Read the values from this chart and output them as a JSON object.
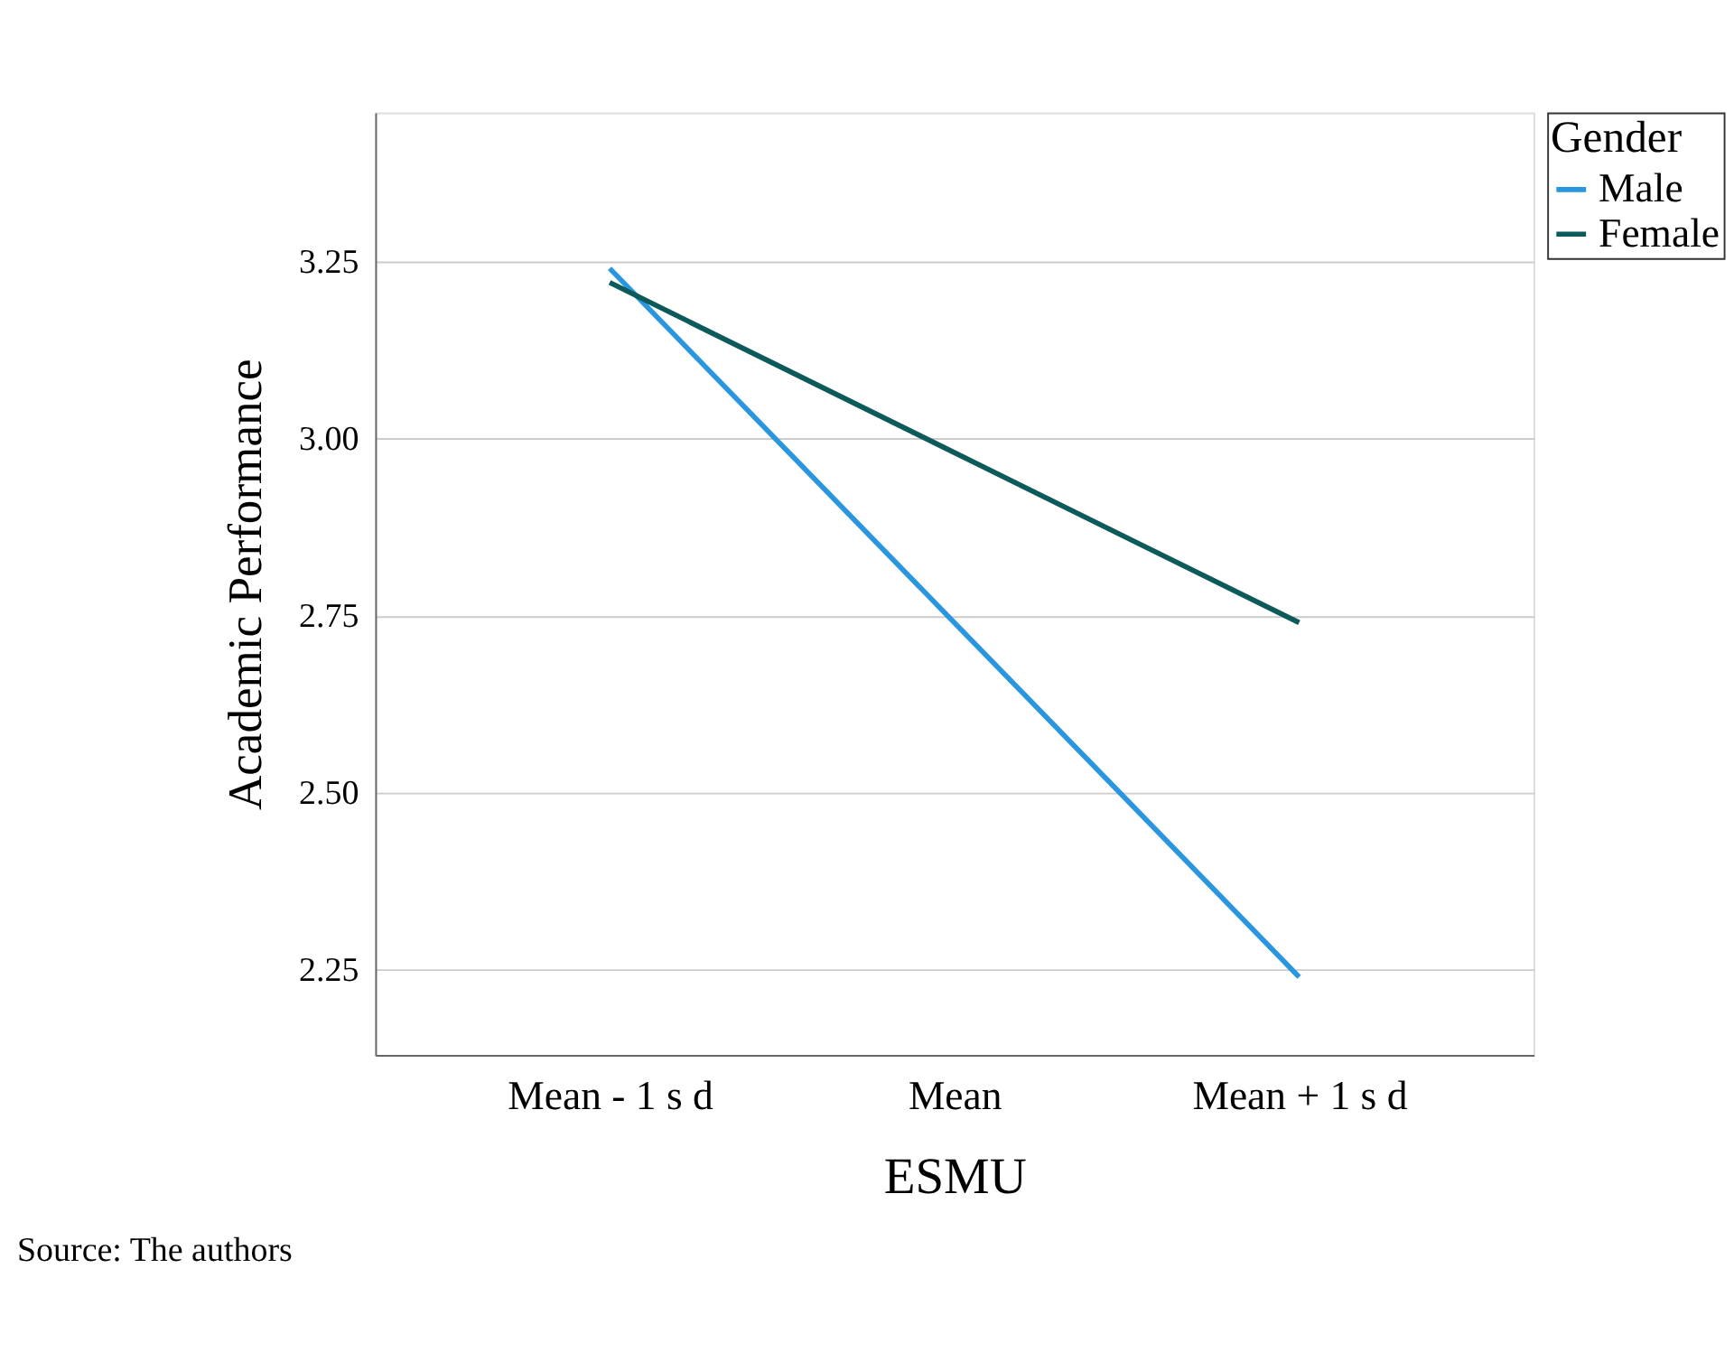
{
  "chart_data": {
    "type": "line",
    "xlabel": "ESMU",
    "ylabel": "Academic Performance",
    "legend_title": "Gender",
    "categories": [
      "Mean - 1 s d",
      "Mean",
      "Mean + 1 s d"
    ],
    "series": [
      {
        "name": "Male",
        "color": "#2b96e0",
        "values": [
          3.24,
          2.74,
          2.24
        ]
      },
      {
        "name": "Female",
        "color": "#0d5a5a",
        "values": [
          3.22,
          2.98,
          2.74
        ]
      }
    ],
    "ylim": [
      2.13,
      3.46
    ],
    "yticks": [
      {
        "value": 2.25,
        "label": "2.25"
      },
      {
        "value": 2.5,
        "label": "2.50"
      },
      {
        "value": 2.75,
        "label": "2.75"
      },
      {
        "value": 3.0,
        "label": "3.00"
      },
      {
        "value": 3.25,
        "label": "3.25"
      }
    ],
    "grid": "y",
    "legend": "top right",
    "marker": "none",
    "line_style": "solid",
    "annotations": [
      "Source: The authors"
    ]
  }
}
